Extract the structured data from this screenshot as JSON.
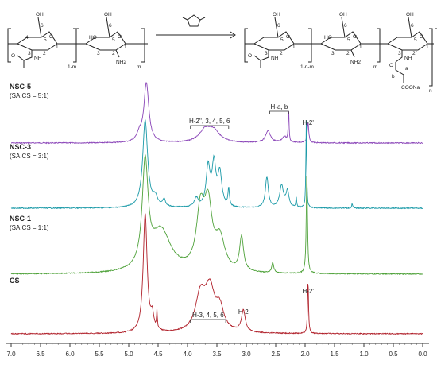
{
  "reaction": {
    "reagent": "succinic anhydride",
    "left": {
      "unit_a": {
        "subscript": "1-m",
        "group": "N-acetyl"
      },
      "unit_b": {
        "subscript": "m",
        "group": "NH2"
      }
    },
    "right": {
      "unit_a": {
        "subscript": "1-n-m"
      },
      "unit_b": {
        "subscript": "m"
      },
      "unit_c": {
        "subscript": "n",
        "chain_labels": [
          "a",
          "b"
        ],
        "end_group": "COONa"
      }
    },
    "labels": {
      "ring_numbers": [
        "1",
        "2",
        "3",
        "4",
        "5",
        "6"
      ],
      "two_prime": "2'",
      "two_double_prime": "2''",
      "oh": "OH",
      "ho": "HO",
      "nh": "NH",
      "nh2": "NH2",
      "o": "O",
      "coona": "COONa"
    }
  },
  "chart_data": {
    "type": "line",
    "x_axis": {
      "range": [
        7.0,
        0.0
      ],
      "reversed": true,
      "ticks": [
        "7.0",
        "6.5",
        "6.0",
        "5.5",
        "5.0",
        "4.5",
        "4.0",
        "3.5",
        "3.0",
        "2.5",
        "2.0",
        "1.5",
        "1.0",
        "0.5",
        "0.0"
      ]
    },
    "grid": false,
    "series": [
      {
        "name": "NSC-5",
        "sublabel": "(SA:CS = 5:1)",
        "color": "#8a45b8",
        "peaks": [
          {
            "x": 4.7,
            "h": 1.0,
            "w": 0.05
          },
          {
            "x": 4.82,
            "h": 0.12,
            "w": 0.05
          },
          {
            "x": 3.7,
            "h": 0.2,
            "w": 0.12
          },
          {
            "x": 3.55,
            "h": 0.18,
            "w": 0.12
          },
          {
            "x": 2.63,
            "h": 0.2,
            "w": 0.05
          },
          {
            "x": 2.35,
            "h": 0.1,
            "w": 0.05
          },
          {
            "x": 2.28,
            "h": 0.55,
            "w": 0.008
          },
          {
            "x": 1.95,
            "h": 0.35,
            "w": 0.015
          }
        ],
        "annotations": [
          {
            "text": "H-2'', 3, 4, 5, 6",
            "x_from": 3.95,
            "x_to": 3.3,
            "type": "bracket"
          },
          {
            "text": "H-a, b",
            "x_from": 2.6,
            "x_to": 2.28,
            "type": "bracket"
          },
          {
            "text": "H-2'",
            "x_from": 1.95,
            "x_to": 1.95,
            "type": "label"
          }
        ]
      },
      {
        "name": "NSC-3",
        "sublabel": "(SA:CS = 3:1)",
        "color": "#1b9aa8",
        "peaks": [
          {
            "x": 4.72,
            "h": 1.0,
            "w": 0.05
          },
          {
            "x": 4.55,
            "h": 0.1,
            "w": 0.05
          },
          {
            "x": 4.4,
            "h": 0.08,
            "w": 0.03
          },
          {
            "x": 3.85,
            "h": 0.1,
            "w": 0.04
          },
          {
            "x": 3.65,
            "h": 0.45,
            "w": 0.04
          },
          {
            "x": 3.55,
            "h": 0.48,
            "w": 0.04
          },
          {
            "x": 3.45,
            "h": 0.38,
            "w": 0.04
          },
          {
            "x": 3.3,
            "h": 0.2,
            "w": 0.015
          },
          {
            "x": 2.65,
            "h": 0.35,
            "w": 0.03
          },
          {
            "x": 2.4,
            "h": 0.25,
            "w": 0.04
          },
          {
            "x": 2.3,
            "h": 0.18,
            "w": 0.03
          },
          {
            "x": 2.15,
            "h": 0.12,
            "w": 0.008
          },
          {
            "x": 1.98,
            "h": 1.0,
            "w": 0.008
          },
          {
            "x": 1.2,
            "h": 0.05,
            "w": 0.01
          }
        ],
        "annotations": []
      },
      {
        "name": "NSC-1",
        "sublabel": "(SA:CS = 1:1)",
        "color": "#4fa23a",
        "peaks": [
          {
            "x": 4.72,
            "h": 1.0,
            "w": 0.06
          },
          {
            "x": 4.45,
            "h": 0.4,
            "w": 0.2
          },
          {
            "x": 3.78,
            "h": 0.55,
            "w": 0.08
          },
          {
            "x": 3.65,
            "h": 0.58,
            "w": 0.08
          },
          {
            "x": 3.45,
            "h": 0.3,
            "w": 0.1
          },
          {
            "x": 3.08,
            "h": 0.33,
            "w": 0.04
          },
          {
            "x": 2.55,
            "h": 0.1,
            "w": 0.02
          },
          {
            "x": 1.97,
            "h": 1.0,
            "w": 0.012
          }
        ],
        "annotations": []
      },
      {
        "name": "CS",
        "sublabel": "",
        "color": "#b0202a",
        "peaks": [
          {
            "x": 4.72,
            "h": 1.0,
            "w": 0.04
          },
          {
            "x": 4.6,
            "h": 0.12,
            "w": 0.03
          },
          {
            "x": 4.52,
            "h": 0.15,
            "w": 0.008
          },
          {
            "x": 3.78,
            "h": 0.3,
            "w": 0.1
          },
          {
            "x": 3.62,
            "h": 0.34,
            "w": 0.1
          },
          {
            "x": 3.45,
            "h": 0.18,
            "w": 0.08
          },
          {
            "x": 3.05,
            "h": 0.18,
            "w": 0.04
          },
          {
            "x": 1.95,
            "h": 0.45,
            "w": 0.01
          }
        ],
        "annotations": [
          {
            "text": "H-3, 4, 5, 6",
            "x_from": 3.95,
            "x_to": 3.35,
            "type": "bracket"
          },
          {
            "text": "H-2",
            "x_from": 3.05,
            "x_to": 3.05,
            "type": "label"
          },
          {
            "text": "H-2'",
            "x_from": 1.95,
            "x_to": 1.95,
            "type": "label"
          }
        ]
      }
    ]
  }
}
